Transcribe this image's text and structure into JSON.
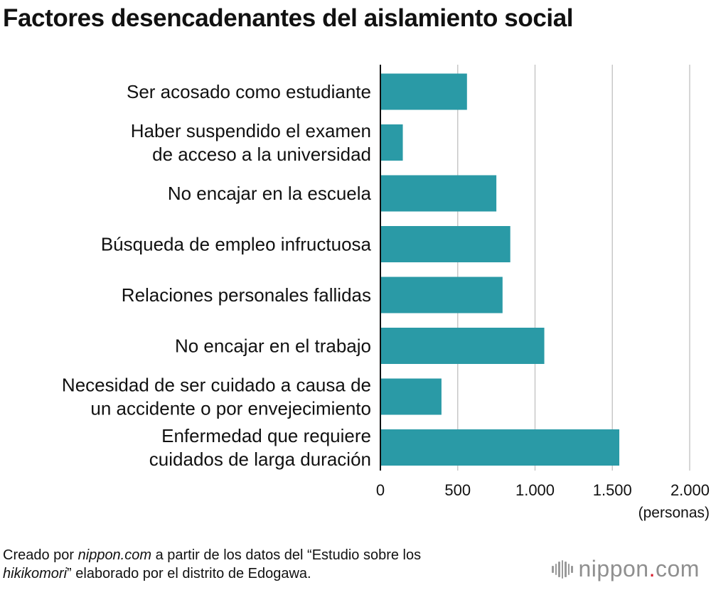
{
  "title": "Factores desencadenantes del aislamiento social",
  "chart_data": {
    "type": "bar",
    "orientation": "horizontal",
    "categories": [
      [
        "Ser acosado como estudiante"
      ],
      [
        "Haber suspendido el examen",
        "de acceso a la universidad"
      ],
      [
        "No encajar en la escuela"
      ],
      [
        "Búsqueda de empleo infructuosa"
      ],
      [
        "Relaciones personales fallidas"
      ],
      [
        "No encajar en el trabajo"
      ],
      [
        "Necesidad de ser cuidado a causa de",
        "un accidente o por envejecimiento"
      ],
      [
        "Enfermedad que requiere",
        "cuidados de larga duración"
      ]
    ],
    "values": [
      560,
      145,
      750,
      840,
      790,
      1060,
      395,
      1545
    ],
    "xlim": [
      0,
      2000
    ],
    "xticks": [
      0,
      500,
      1000,
      1500,
      2000
    ],
    "xtick_labels": [
      "0",
      "500",
      "1.000",
      "1.500",
      "2.000"
    ],
    "xlabel": "(personas)",
    "bar_color": "#2a9aa6",
    "grid": true
  },
  "footnote": {
    "part1": "Creado por ",
    "italic1": "nippon.com",
    "part2": " a partir de los datos del “Estudio sobre los ",
    "italic2": "hikikomori",
    "part3": "” elaborado por el distrito de Edogawa."
  },
  "logo": {
    "name": "nippon",
    "dot": ".",
    "suffix": "com"
  }
}
